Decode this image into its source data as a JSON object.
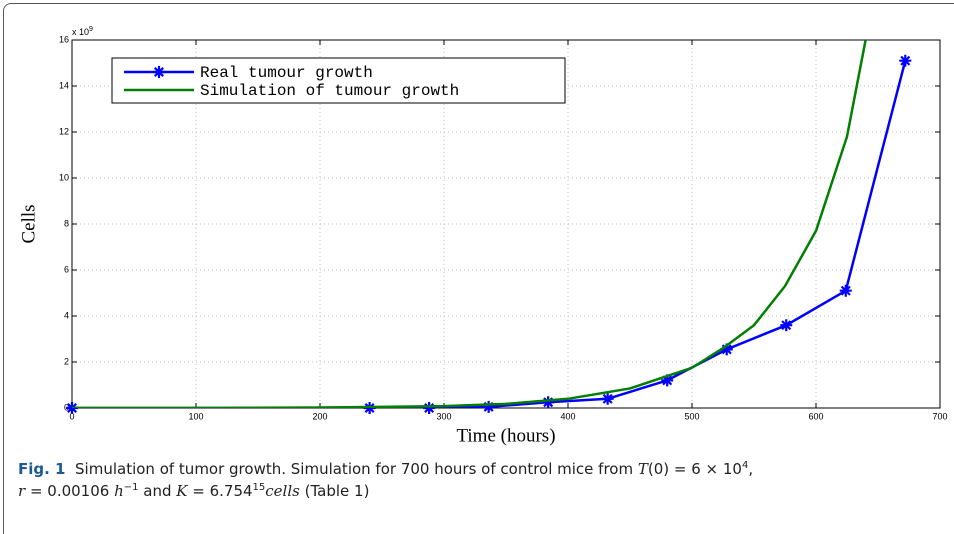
{
  "chart_data": {
    "type": "line",
    "xlabel": "Time (hours)",
    "ylabel": "Cells",
    "y_multiplier": {
      "base": "x 10",
      "exp": "9"
    },
    "xlim": [
      0,
      700
    ],
    "ylim": [
      0,
      16
    ],
    "xticks": [
      0,
      100,
      200,
      300,
      400,
      500,
      600,
      700
    ],
    "yticks": [
      0,
      2,
      4,
      6,
      8,
      10,
      12,
      14,
      16
    ],
    "grid": true,
    "legend": "upper left",
    "series": [
      {
        "name": "Real tumour growth",
        "color": "#0000ff",
        "marker": "asterisk",
        "x": [
          0,
          240,
          288,
          336,
          384,
          432,
          480,
          528,
          576,
          624,
          672
        ],
        "values": [
          0,
          0,
          0,
          0.05,
          0.25,
          0.4,
          1.2,
          2.55,
          3.6,
          5.1,
          15.1
        ]
      },
      {
        "name": "Simulation of tumour growth",
        "color": "#007f00",
        "x": [
          0,
          100,
          200,
          300,
          350,
          400,
          450,
          500,
          525,
          550,
          575,
          600,
          625,
          640
        ],
        "values": [
          0,
          0,
          0.02,
          0.08,
          0.18,
          0.4,
          0.85,
          1.75,
          2.6,
          3.6,
          5.3,
          7.7,
          11.8,
          16
        ]
      }
    ]
  },
  "caption": {
    "label": "Fig. 1",
    "segments": [
      "Simulation of tumor growth. Simulation for 700 hours of control mice from ",
      "T",
      "(0) = 6 × 10",
      "4",
      ",",
      "r",
      " = 0.00106 ",
      "h",
      "−1",
      " and ",
      "K",
      " = 6.754",
      "15",
      "cells",
      " (Table 1)"
    ]
  }
}
